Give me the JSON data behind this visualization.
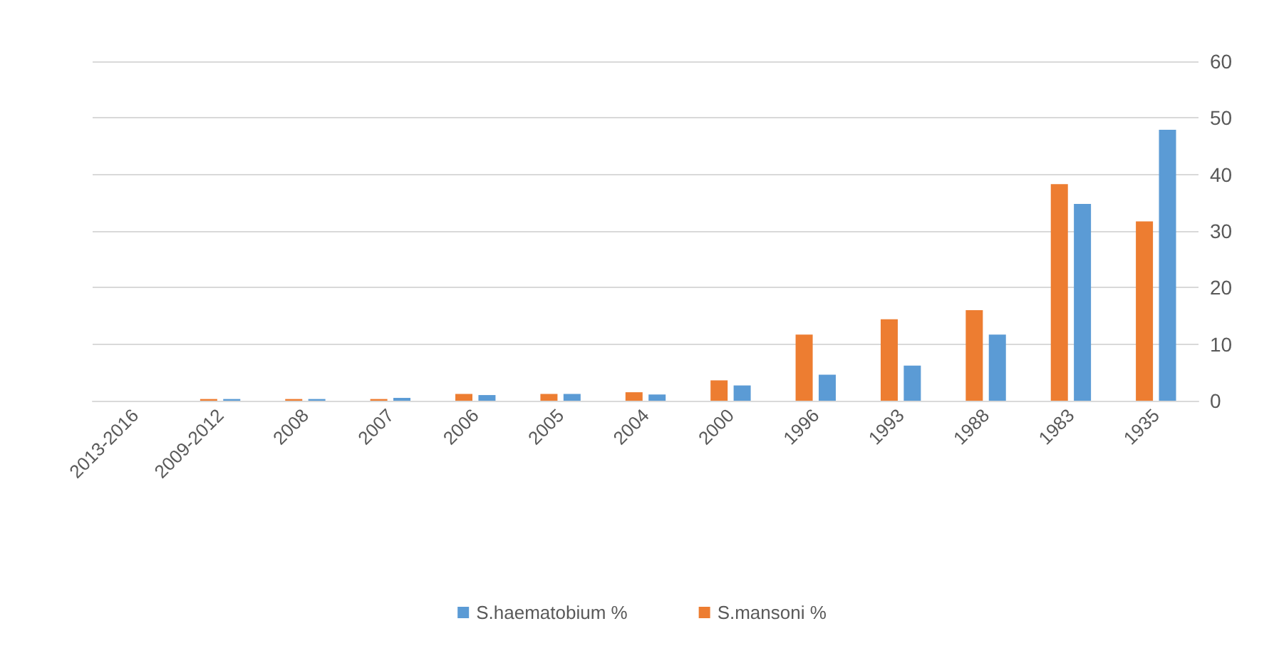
{
  "chart_data": {
    "type": "bar",
    "categories": [
      "2013-2016",
      "2009-2012",
      "2008",
      "2007",
      "2006",
      "2005",
      "2004",
      "2000",
      "1996",
      "1993",
      "1988",
      "1983",
      "1935"
    ],
    "series": [
      {
        "name": "S.haematobium %",
        "color": "#5b9bd5",
        "values": [
          0,
          0.3,
          0.3,
          0.5,
          1.0,
          1.2,
          1.1,
          2.7,
          4.6,
          6.2,
          11.7,
          34.8,
          47.9
        ]
      },
      {
        "name": "S.mansoni %",
        "color": "#ed7d31",
        "values": [
          0,
          0.3,
          0.3,
          0.3,
          1.2,
          1.2,
          1.5,
          3.6,
          11.7,
          14.4,
          16.0,
          38.3,
          31.7
        ]
      }
    ],
    "ylim": [
      0,
      60
    ],
    "yticks": [
      0,
      10,
      20,
      30,
      40,
      50,
      60
    ],
    "grid": "y",
    "legend": "bottom"
  }
}
